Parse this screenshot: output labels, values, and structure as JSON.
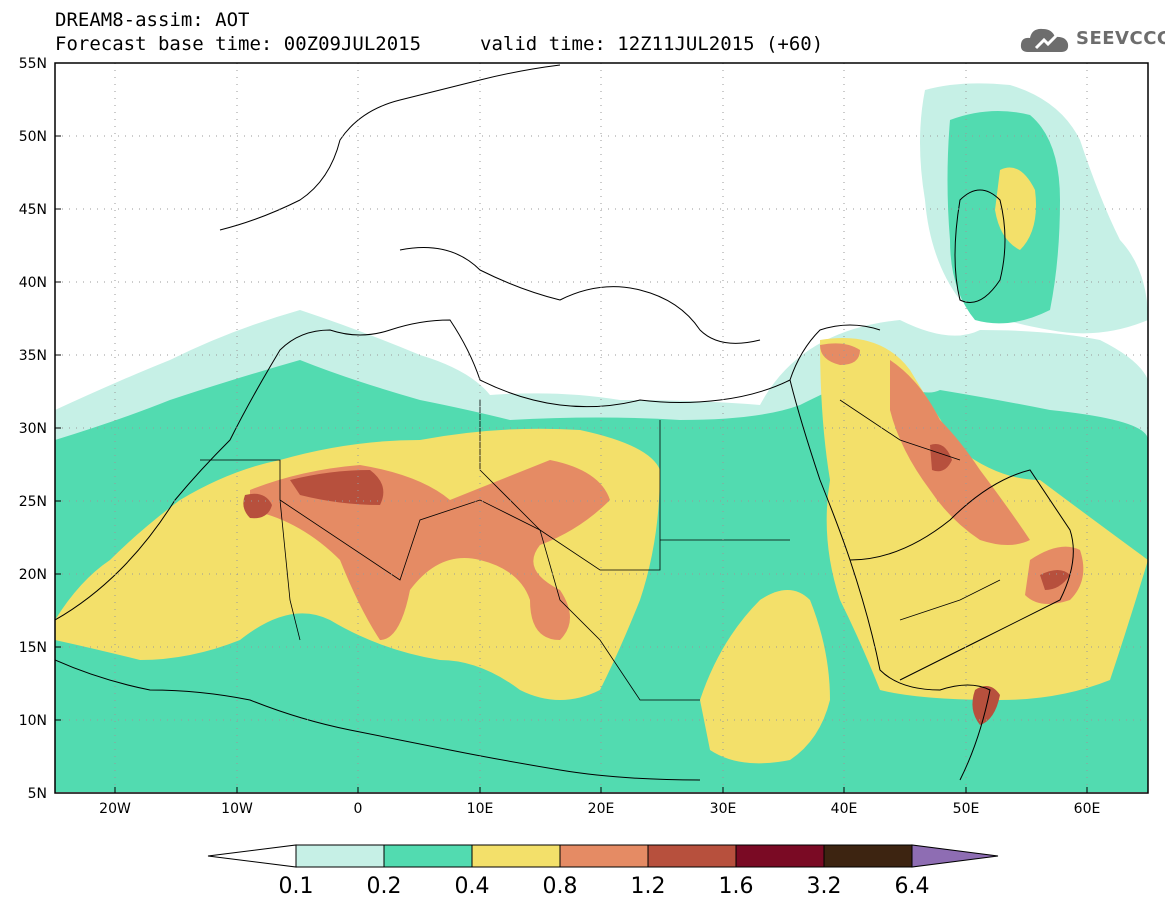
{
  "header": {
    "title_line1": "DREAM8-assim: AOT",
    "title_line2": "Forecast base time: 00Z09JUL2015",
    "valid_time": "valid time: 12Z11JUL2015 (+60)"
  },
  "logo": {
    "text": "SEEVCCC",
    "icon": "cloud-icon"
  },
  "axes": {
    "lat_labels": [
      "55N",
      "50N",
      "45N",
      "40N",
      "35N",
      "30N",
      "25N",
      "20N",
      "15N",
      "10N",
      "5N"
    ],
    "lon_labels": [
      "20W",
      "10W",
      "0",
      "10E",
      "20E",
      "30E",
      "40E",
      "50E",
      "60E"
    ]
  },
  "colorbar": {
    "labels": [
      "0.1",
      "0.2",
      "0.4",
      "0.8",
      "1.2",
      "1.6",
      "3.2",
      "6.4"
    ],
    "colors": [
      "#ffffff",
      "#c6f0e6",
      "#52dbb0",
      "#f3e06a",
      "#e58b64",
      "#b7503d",
      "#7a0a24",
      "#3d2411",
      "#8e6db3"
    ]
  },
  "map": {
    "background": "#ffffff",
    "border_color": "#000000",
    "gridline_color": "#9a9a9a"
  }
}
